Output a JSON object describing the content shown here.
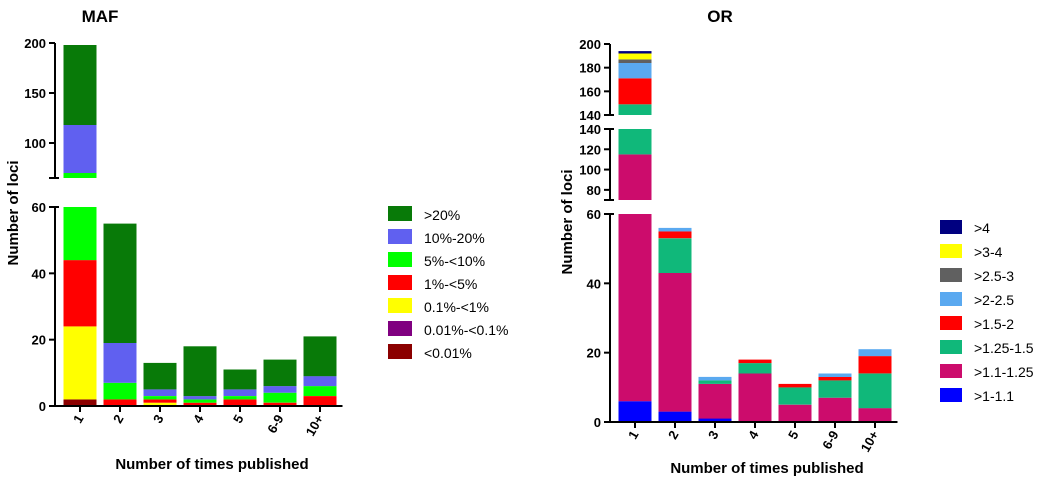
{
  "chart_data": [
    {
      "type": "bar",
      "stacked": true,
      "title": "MAF",
      "xlabel": "Number of times published",
      "ylabel": "Number of loci",
      "categories": [
        "1",
        "2",
        "3",
        "4",
        "5",
        "6-9",
        "10+"
      ],
      "y_axis_segments": [
        {
          "range": [
            0,
            60
          ],
          "ticks": [
            "0",
            "20",
            "40",
            "60"
          ]
        },
        {
          "range": [
            65,
            200
          ],
          "ticks": [
            "100",
            "150",
            "200"
          ]
        }
      ],
      "legend_position": "right",
      "series": [
        {
          "name": "<0.01%",
          "color": "#8b0000",
          "values": [
            2,
            0,
            0,
            0,
            0,
            0,
            0
          ]
        },
        {
          "name": "0.01%-<0.1%",
          "color": "#800080",
          "values": [
            0,
            0,
            0,
            0,
            0,
            0,
            0
          ]
        },
        {
          "name": "0.1%-<1%",
          "color": "#ffff00",
          "values": [
            22,
            0,
            1,
            0,
            0,
            0,
            0
          ]
        },
        {
          "name": "1%-<5%",
          "color": "#ff0000",
          "values": [
            20,
            2,
            1,
            1,
            2,
            1,
            3
          ]
        },
        {
          "name": "5%-<10%",
          "color": "#00ff00",
          "values": [
            26,
            5,
            1,
            1,
            1,
            3,
            3
          ]
        },
        {
          "name": "10%-20%",
          "color": "#6060f0",
          "values": [
            48,
            12,
            2,
            1,
            2,
            2,
            3
          ]
        },
        {
          "name": ">20%",
          "color": "#087a08",
          "values": [
            80,
            36,
            8,
            15,
            6,
            8,
            12
          ]
        }
      ]
    },
    {
      "type": "bar",
      "stacked": true,
      "title": "OR",
      "xlabel": "Number of times published",
      "ylabel": "Number of loci",
      "categories": [
        "1",
        "2",
        "3",
        "4",
        "5",
        "6-9",
        "10+"
      ],
      "y_axis_segments": [
        {
          "range": [
            0,
            60
          ],
          "ticks": [
            "0",
            "20",
            "40",
            "60"
          ]
        },
        {
          "range": [
            70,
            140
          ],
          "ticks": [
            "80",
            "100",
            "120",
            "140"
          ]
        },
        {
          "range": [
            140,
            200
          ],
          "ticks": [
            "140",
            "160",
            "180",
            "200"
          ]
        }
      ],
      "legend_position": "right",
      "series": [
        {
          "name": ">1-1.1",
          "color": "#0000ff",
          "values": [
            6,
            3,
            1,
            0,
            0,
            0,
            0
          ]
        },
        {
          "name": ">1.1-1.25",
          "color": "#cc0c6c",
          "values": [
            109,
            40,
            10,
            14,
            5,
            7,
            4
          ]
        },
        {
          "name": ">1.25-1.5",
          "color": "#10b87a",
          "values": [
            34,
            10,
            1,
            3,
            5,
            5,
            10
          ]
        },
        {
          "name": ">1.5-2",
          "color": "#ff0000",
          "values": [
            22,
            2,
            0,
            1,
            1,
            1,
            5
          ]
        },
        {
          "name": ">2-2.5",
          "color": "#5aa9f0",
          "values": [
            13,
            1,
            1,
            0,
            0,
            1,
            2
          ]
        },
        {
          "name": ">2.5-3",
          "color": "#606060",
          "values": [
            3,
            0,
            0,
            0,
            0,
            0,
            0
          ]
        },
        {
          "name": ">3-4",
          "color": "#ffff00",
          "values": [
            5,
            0,
            0,
            0,
            0,
            0,
            0
          ]
        },
        {
          "name": ">4",
          "color": "#000080",
          "values": [
            2,
            0,
            0,
            0,
            0,
            0,
            0
          ]
        }
      ]
    }
  ]
}
